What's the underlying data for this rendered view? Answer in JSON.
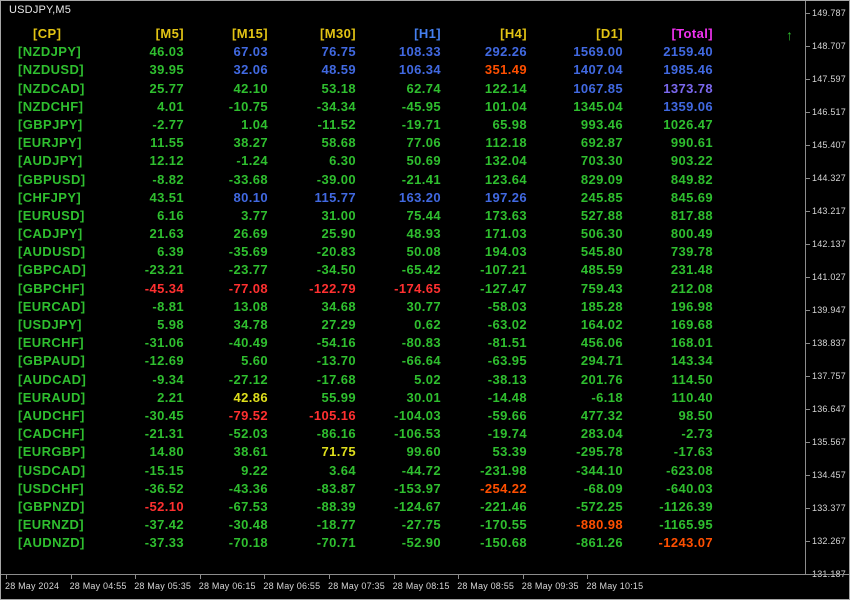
{
  "window": {
    "title": "USDJPY,M5"
  },
  "colors": {
    "g": "#2FBF2F",
    "b": "#4169E1",
    "p": "#7B68EE",
    "r": "#FF3030",
    "o": "#FF4F00",
    "y": "#DFDF1C",
    "hy": "#E3C414",
    "hb": "#4580F0",
    "m": "#F032F0",
    "pair": "#2FBF2F",
    "axis_text": "#D6D6D6",
    "axis_line": "#8C8C8C",
    "title_text": "#E8E8E8"
  },
  "table": {
    "headers": [
      {
        "label": "[CP]",
        "color": "hy"
      },
      {
        "label": "[M5]",
        "color": "hy"
      },
      {
        "label": "[M15]",
        "color": "hy"
      },
      {
        "label": "[M30]",
        "color": "hy"
      },
      {
        "label": "[H1]",
        "color": "hb"
      },
      {
        "label": "[H4]",
        "color": "hy"
      },
      {
        "label": "[D1]",
        "color": "hy"
      },
      {
        "label": "[Total]",
        "color": "m"
      }
    ],
    "sort_arrow": "↑",
    "rows": [
      {
        "pair": "[NZDJPY]",
        "values": [
          "46.03",
          "67.03",
          "76.75",
          "108.33",
          "292.26",
          "1569.00",
          "2159.40"
        ],
        "colors": [
          "g",
          "b",
          "b",
          "b",
          "b",
          "b",
          "b"
        ]
      },
      {
        "pair": "[NZDUSD]",
        "values": [
          "39.95",
          "32.06",
          "48.59",
          "106.34",
          "351.49",
          "1407.04",
          "1985.46"
        ],
        "colors": [
          "g",
          "b",
          "b",
          "b",
          "o",
          "b",
          "b"
        ]
      },
      {
        "pair": "[NZDCAD]",
        "values": [
          "25.77",
          "42.10",
          "53.18",
          "62.74",
          "122.14",
          "1067.85",
          "1373.78"
        ],
        "colors": [
          "g",
          "g",
          "g",
          "g",
          "g",
          "b",
          "p"
        ]
      },
      {
        "pair": "[NZDCHF]",
        "values": [
          "4.01",
          "-10.75",
          "-34.34",
          "-45.95",
          "101.04",
          "1345.04",
          "1359.06"
        ],
        "colors": [
          "g",
          "g",
          "g",
          "g",
          "g",
          "g",
          "b"
        ]
      },
      {
        "pair": "[GBPJPY]",
        "values": [
          "-2.77",
          "1.04",
          "-11.52",
          "-19.71",
          "65.98",
          "993.46",
          "1026.47"
        ],
        "colors": [
          "g",
          "g",
          "g",
          "g",
          "g",
          "g",
          "g"
        ]
      },
      {
        "pair": "[EURJPY]",
        "values": [
          "11.55",
          "38.27",
          "58.68",
          "77.06",
          "112.18",
          "692.87",
          "990.61"
        ],
        "colors": [
          "g",
          "g",
          "g",
          "g",
          "g",
          "g",
          "g"
        ]
      },
      {
        "pair": "[AUDJPY]",
        "values": [
          "12.12",
          "-1.24",
          "6.30",
          "50.69",
          "132.04",
          "703.30",
          "903.22"
        ],
        "colors": [
          "g",
          "g",
          "g",
          "g",
          "g",
          "g",
          "g"
        ]
      },
      {
        "pair": "[GBPUSD]",
        "values": [
          "-8.82",
          "-33.68",
          "-39.00",
          "-21.41",
          "123.64",
          "829.09",
          "849.82"
        ],
        "colors": [
          "g",
          "g",
          "g",
          "g",
          "g",
          "g",
          "g"
        ]
      },
      {
        "pair": "[CHFJPY]",
        "values": [
          "43.51",
          "80.10",
          "115.77",
          "163.20",
          "197.26",
          "245.85",
          "845.69"
        ],
        "colors": [
          "g",
          "b",
          "b",
          "b",
          "b",
          "g",
          "g"
        ]
      },
      {
        "pair": "[EURUSD]",
        "values": [
          "6.16",
          "3.77",
          "31.00",
          "75.44",
          "173.63",
          "527.88",
          "817.88"
        ],
        "colors": [
          "g",
          "g",
          "g",
          "g",
          "g",
          "g",
          "g"
        ]
      },
      {
        "pair": "[CADJPY]",
        "values": [
          "21.63",
          "26.69",
          "25.90",
          "48.93",
          "171.03",
          "506.30",
          "800.49"
        ],
        "colors": [
          "g",
          "g",
          "g",
          "g",
          "g",
          "g",
          "g"
        ]
      },
      {
        "pair": "[AUDUSD]",
        "values": [
          "6.39",
          "-35.69",
          "-20.83",
          "50.08",
          "194.03",
          "545.80",
          "739.78"
        ],
        "colors": [
          "g",
          "g",
          "g",
          "g",
          "g",
          "g",
          "g"
        ]
      },
      {
        "pair": "[GBPCAD]",
        "values": [
          "-23.21",
          "-23.77",
          "-34.50",
          "-65.42",
          "-107.21",
          "485.59",
          "231.48"
        ],
        "colors": [
          "g",
          "g",
          "g",
          "g",
          "g",
          "g",
          "g"
        ]
      },
      {
        "pair": "[GBPCHF]",
        "values": [
          "-45.34",
          "-77.08",
          "-122.79",
          "-174.65",
          "-127.47",
          "759.43",
          "212.08"
        ],
        "colors": [
          "r",
          "r",
          "r",
          "r",
          "g",
          "g",
          "g"
        ]
      },
      {
        "pair": "[EURCAD]",
        "values": [
          "-8.81",
          "13.08",
          "34.68",
          "30.77",
          "-58.03",
          "185.28",
          "196.98"
        ],
        "colors": [
          "g",
          "g",
          "g",
          "g",
          "g",
          "g",
          "g"
        ]
      },
      {
        "pair": "[USDJPY]",
        "values": [
          "5.98",
          "34.78",
          "27.29",
          "0.62",
          "-63.02",
          "164.02",
          "169.68"
        ],
        "colors": [
          "g",
          "g",
          "g",
          "g",
          "g",
          "g",
          "g"
        ]
      },
      {
        "pair": "[EURCHF]",
        "values": [
          "-31.06",
          "-40.49",
          "-54.16",
          "-80.83",
          "-81.51",
          "456.06",
          "168.01"
        ],
        "colors": [
          "g",
          "g",
          "g",
          "g",
          "g",
          "g",
          "g"
        ]
      },
      {
        "pair": "[GBPAUD]",
        "values": [
          "-12.69",
          "5.60",
          "-13.70",
          "-66.64",
          "-63.95",
          "294.71",
          "143.34"
        ],
        "colors": [
          "g",
          "g",
          "g",
          "g",
          "g",
          "g",
          "g"
        ]
      },
      {
        "pair": "[AUDCAD]",
        "values": [
          "-9.34",
          "-27.12",
          "-17.68",
          "5.02",
          "-38.13",
          "201.76",
          "114.50"
        ],
        "colors": [
          "g",
          "g",
          "g",
          "g",
          "g",
          "g",
          "g"
        ]
      },
      {
        "pair": "[EURAUD]",
        "values": [
          "2.21",
          "42.86",
          "55.99",
          "30.01",
          "-14.48",
          "-6.18",
          "110.40"
        ],
        "colors": [
          "g",
          "y",
          "g",
          "g",
          "g",
          "g",
          "g"
        ]
      },
      {
        "pair": "[AUDCHF]",
        "values": [
          "-30.45",
          "-79.52",
          "-105.16",
          "-104.03",
          "-59.66",
          "477.32",
          "98.50"
        ],
        "colors": [
          "g",
          "r",
          "r",
          "g",
          "g",
          "g",
          "g"
        ]
      },
      {
        "pair": "[CADCHF]",
        "values": [
          "-21.31",
          "-52.03",
          "-86.16",
          "-106.53",
          "-19.74",
          "283.04",
          "-2.73"
        ],
        "colors": [
          "g",
          "g",
          "g",
          "g",
          "g",
          "g",
          "g"
        ]
      },
      {
        "pair": "[EURGBP]",
        "values": [
          "14.80",
          "38.61",
          "71.75",
          "99.60",
          "53.39",
          "-295.78",
          "-17.63"
        ],
        "colors": [
          "g",
          "g",
          "y",
          "g",
          "g",
          "g",
          "g"
        ]
      },
      {
        "pair": "[USDCAD]",
        "values": [
          "-15.15",
          "9.22",
          "3.64",
          "-44.72",
          "-231.98",
          "-344.10",
          "-623.08"
        ],
        "colors": [
          "g",
          "g",
          "g",
          "g",
          "g",
          "g",
          "g"
        ]
      },
      {
        "pair": "[USDCHF]",
        "values": [
          "-36.52",
          "-43.36",
          "-83.87",
          "-153.97",
          "-254.22",
          "-68.09",
          "-640.03"
        ],
        "colors": [
          "g",
          "g",
          "g",
          "g",
          "o",
          "g",
          "g"
        ]
      },
      {
        "pair": "[GBPNZD]",
        "values": [
          "-52.10",
          "-67.53",
          "-88.39",
          "-124.67",
          "-221.46",
          "-572.25",
          "-1126.39"
        ],
        "colors": [
          "r",
          "g",
          "g",
          "g",
          "g",
          "g",
          "g"
        ]
      },
      {
        "pair": "[EURNZD]",
        "values": [
          "-37.42",
          "-30.48",
          "-18.77",
          "-27.75",
          "-170.55",
          "-880.98",
          "-1165.95"
        ],
        "colors": [
          "g",
          "g",
          "g",
          "g",
          "g",
          "o",
          "g"
        ]
      },
      {
        "pair": "[AUDNZD]",
        "values": [
          "-37.33",
          "-70.18",
          "-70.71",
          "-52.90",
          "-150.68",
          "-861.26",
          "-1243.07"
        ],
        "colors": [
          "g",
          "g",
          "g",
          "g",
          "g",
          "g",
          "o"
        ]
      }
    ]
  },
  "price_axis": {
    "labels": [
      "149.787",
      "148.707",
      "147.597",
      "146.517",
      "145.407",
      "144.327",
      "143.217",
      "142.137",
      "141.027",
      "139.947",
      "138.837",
      "137.757",
      "136.647",
      "135.567",
      "134.457",
      "133.377",
      "132.267",
      "131.187"
    ]
  },
  "time_axis": {
    "labels": [
      "28 May 2024",
      "28 May 04:55",
      "28 May 05:35",
      "28 May 06:15",
      "28 May 06:55",
      "28 May 07:35",
      "28 May 08:15",
      "28 May 08:55",
      "28 May 09:35",
      "28 May 10:15"
    ]
  }
}
